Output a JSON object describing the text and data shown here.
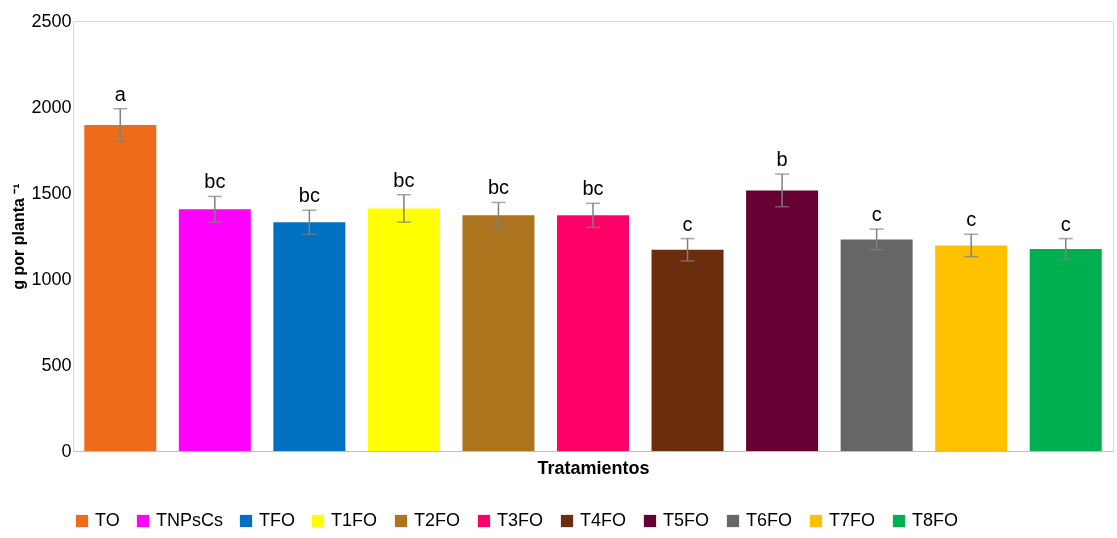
{
  "chart_data": {
    "type": "bar",
    "stacked": true,
    "xlabel": "Tratamientos",
    "ylabel": "g por planta ⁻¹",
    "categories": [
      null,
      null,
      null,
      null,
      null,
      null,
      null,
      null,
      null,
      null,
      null
    ],
    "series": [
      {
        "name": "TO",
        "color": "#ed6b1a",
        "values": [
          1895,
          null,
          null,
          null,
          null,
          null,
          null,
          null,
          null,
          null,
          null
        ],
        "errors": [
          95,
          null,
          null,
          null,
          null,
          null,
          null,
          null,
          null,
          null,
          null
        ]
      },
      {
        "name": "TNPsCs",
        "color": "#ff00ff",
        "values": [
          null,
          1405,
          null,
          null,
          null,
          null,
          null,
          null,
          null,
          null,
          null
        ],
        "errors": [
          null,
          75,
          null,
          null,
          null,
          null,
          null,
          null,
          null,
          null,
          null
        ]
      },
      {
        "name": "TFO",
        "color": "#0070c0",
        "values": [
          null,
          null,
          1330,
          null,
          null,
          null,
          null,
          null,
          null,
          null,
          null
        ],
        "errors": [
          null,
          null,
          70,
          null,
          null,
          null,
          null,
          null,
          null,
          null,
          null
        ]
      },
      {
        "name": "T1FO",
        "color": "#ffff00",
        "values": [
          null,
          null,
          null,
          1410,
          null,
          null,
          null,
          null,
          null,
          null,
          null
        ],
        "errors": [
          null,
          null,
          null,
          80,
          null,
          null,
          null,
          null,
          null,
          null,
          null
        ]
      },
      {
        "name": "T2FO",
        "color": "#ad741e",
        "values": [
          null,
          null,
          null,
          null,
          1370,
          null,
          null,
          null,
          null,
          null,
          null
        ],
        "errors": [
          null,
          null,
          null,
          null,
          75,
          null,
          null,
          null,
          null,
          null,
          null
        ]
      },
      {
        "name": "T3FO",
        "color": "#ff0066",
        "values": [
          null,
          null,
          null,
          null,
          null,
          1370,
          null,
          null,
          null,
          null,
          null
        ],
        "errors": [
          null,
          null,
          null,
          null,
          null,
          70,
          null,
          null,
          null,
          null,
          null
        ]
      },
      {
        "name": "T4FO",
        "color": "#6a2d0e",
        "values": [
          null,
          null,
          null,
          null,
          null,
          null,
          1170,
          null,
          null,
          null,
          null
        ],
        "errors": [
          null,
          null,
          null,
          null,
          null,
          null,
          65,
          null,
          null,
          null,
          null
        ]
      },
      {
        "name": "T5FO",
        "color": "#660033",
        "values": [
          null,
          null,
          null,
          null,
          null,
          null,
          null,
          1515,
          null,
          null,
          null
        ],
        "errors": [
          null,
          null,
          null,
          null,
          null,
          null,
          null,
          95,
          null,
          null,
          null
        ]
      },
      {
        "name": "T6FO",
        "color": "#666666",
        "values": [
          null,
          null,
          null,
          null,
          null,
          null,
          null,
          null,
          1230,
          null,
          null
        ],
        "errors": [
          null,
          null,
          null,
          null,
          null,
          null,
          null,
          null,
          60,
          null,
          null
        ]
      },
      {
        "name": "T7FO",
        "color": "#ffc000",
        "values": [
          null,
          null,
          null,
          null,
          null,
          null,
          null,
          null,
          null,
          1195,
          null
        ],
        "errors": [
          null,
          null,
          null,
          null,
          null,
          null,
          null,
          null,
          null,
          65,
          null
        ]
      },
      {
        "name": "T8FO",
        "color": "#00b050",
        "values": [
          null,
          null,
          null,
          null,
          null,
          null,
          null,
          null,
          null,
          null,
          1175
        ],
        "errors": [
          null,
          null,
          null,
          null,
          null,
          null,
          null,
          null,
          null,
          null,
          60
        ]
      }
    ],
    "ylim": [
      0,
      2500
    ],
    "yticks": [
      0,
      500,
      1000,
      1500,
      2000,
      2500
    ],
    "grid": false,
    "legend": "bottom",
    "annotations": [
      "a",
      "bc",
      "bc",
      "bc",
      "bc",
      "bc",
      "c",
      "b",
      "c",
      "c",
      "c"
    ]
  }
}
